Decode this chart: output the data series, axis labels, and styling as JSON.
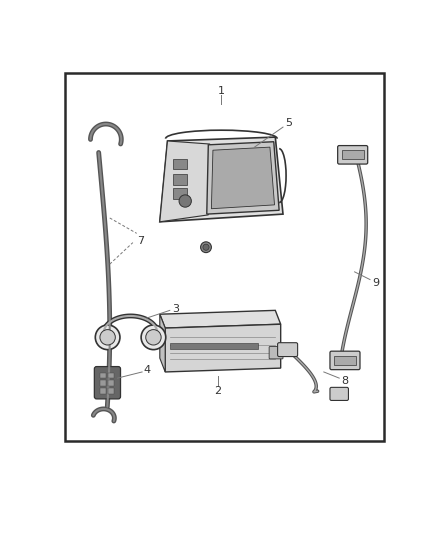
{
  "background_color": "#ffffff",
  "border_color": "#2a2a2a",
  "border_linewidth": 1.8,
  "figure_width": 4.38,
  "figure_height": 5.33,
  "dpi": 100,
  "wire_color": "#555555",
  "edge_color": "#333333",
  "fill_light": "#e8e8e8",
  "fill_mid": "#cccccc",
  "fill_dark": "#999999",
  "label_fontsize": 8.0,
  "label_color": "#333333",
  "leader_color": "#777777"
}
